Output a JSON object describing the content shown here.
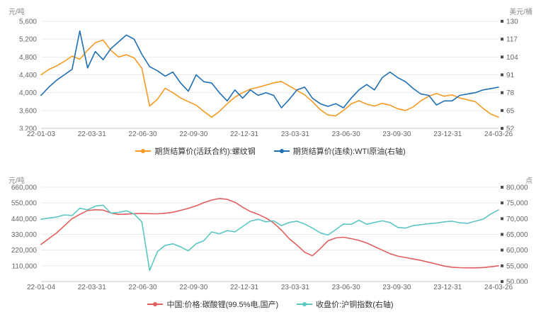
{
  "chart_data": [
    {
      "type": "line",
      "title": "",
      "left_unit": "元/吨",
      "right_unit": "美元/桶",
      "legend_position": "bottom",
      "grid": true,
      "x_labels": [
        "22-01-03",
        "22-03-31",
        "22-06-30",
        "22-09-30",
        "22-12-31",
        "23-03-31",
        "23-06-30",
        "23-09-30",
        "23-12-31",
        "24-03-26"
      ],
      "left_axis": {
        "min": 3200,
        "max": 5600,
        "ticks": [
          5600,
          5200,
          4800,
          4400,
          4000,
          3600,
          3200
        ]
      },
      "right_axis": {
        "min": 52,
        "max": 130,
        "ticks": [
          130,
          117,
          104,
          91,
          78,
          65,
          52
        ]
      },
      "series": [
        {
          "name": "期货结算价(活跃合约):螺纹钢",
          "axis": "left",
          "color": "#F59A23",
          "values": [
            4400,
            4520,
            4600,
            4700,
            4820,
            4750,
            4950,
            5120,
            5180,
            4950,
            4800,
            4850,
            4780,
            4550,
            3700,
            3850,
            4100,
            4000,
            3880,
            3800,
            3720,
            3580,
            3450,
            3580,
            3750,
            3900,
            4000,
            4080,
            4120,
            4170,
            4220,
            4250,
            4150,
            4050,
            3950,
            3800,
            3620,
            3500,
            3480,
            3600,
            3750,
            3820,
            3740,
            3700,
            3760,
            3720,
            3640,
            3600,
            3680,
            3820,
            3920,
            3980,
            3920,
            3950,
            3880,
            3840,
            3800,
            3650,
            3520,
            3450
          ]
        },
        {
          "name": "期货结算价(连续):WTI原油(右轴)",
          "axis": "right",
          "color": "#1F6FB5",
          "values": [
            76,
            82,
            87,
            91,
            95,
            123,
            96,
            108,
            102,
            110,
            115,
            120,
            117,
            106,
            97,
            94,
            90,
            93,
            85,
            79,
            91,
            86,
            85,
            78,
            72,
            80,
            74,
            80,
            76,
            78,
            76,
            67,
            73,
            80,
            82,
            74,
            70,
            68,
            70,
            67,
            74,
            80,
            84,
            80,
            89,
            93,
            89,
            86,
            81,
            77,
            76,
            69,
            72,
            72,
            76,
            77,
            78,
            80,
            81,
            82
          ]
        }
      ]
    },
    {
      "type": "line",
      "title": "",
      "left_unit": "元/吨",
      "right_unit": "点",
      "legend_position": "bottom",
      "grid": true,
      "x_labels": [
        "22-01-04",
        "22-03-31",
        "22-06-30",
        "22-09-30",
        "22-12-31",
        "23-03-31",
        "23-06-30",
        "23-09-30",
        "23-12-31",
        "24-03-26"
      ],
      "left_axis": {
        "min": 0,
        "max": 660000,
        "ticks": [
          660000,
          550000,
          440000,
          330000,
          220000,
          110000
        ]
      },
      "right_axis": {
        "min": 50000,
        "max": 80000,
        "ticks": [
          80000,
          75000,
          70000,
          65000,
          60000,
          55000,
          50000
        ]
      },
      "series": [
        {
          "name": "中国:价格:碳酸锂(99.5%电,国产)",
          "axis": "left",
          "color": "#E15E5E",
          "values": [
            260000,
            300000,
            340000,
            390000,
            440000,
            470000,
            497000,
            502000,
            500000,
            480000,
            470000,
            472000,
            475000,
            477000,
            475000,
            474000,
            478000,
            485000,
            498000,
            512000,
            530000,
            552000,
            570000,
            581000,
            575000,
            555000,
            520000,
            490000,
            470000,
            445000,
            410000,
            360000,
            300000,
            255000,
            205000,
            180000,
            230000,
            285000,
            305000,
            310000,
            300000,
            288000,
            270000,
            245000,
            220000,
            195000,
            178000,
            168000,
            158000,
            148000,
            135000,
            122000,
            108000,
            100000,
            97000,
            96000,
            96000,
            98000,
            103000,
            110000
          ]
        },
        {
          "name": "收盘价:沪铜指数(右轴)",
          "axis": "right",
          "color": "#5CC6C2",
          "values": [
            69800,
            70200,
            70500,
            71200,
            71000,
            73300,
            72800,
            74000,
            74300,
            71800,
            72000,
            72500,
            71500,
            69000,
            53500,
            59500,
            61500,
            62000,
            61000,
            59800,
            62000,
            63000,
            65800,
            65200,
            66200,
            65800,
            67500,
            69200,
            69800,
            69000,
            69300,
            67800,
            68800,
            69200,
            68300,
            67000,
            65500,
            64800,
            66500,
            68300,
            68200,
            69500,
            68200,
            68800,
            69300,
            68800,
            67200,
            67000,
            67800,
            68100,
            68400,
            68600,
            69000,
            69200,
            68700,
            68500,
            69200,
            69800,
            71500,
            72800
          ]
        }
      ]
    }
  ]
}
